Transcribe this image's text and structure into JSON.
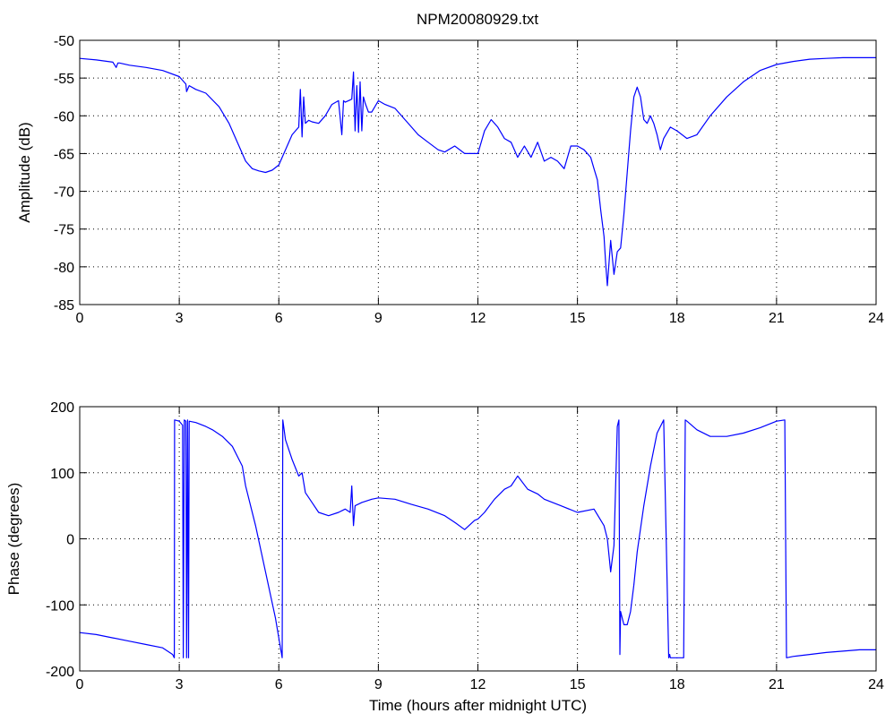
{
  "figure": {
    "title": "NPM20080929.txt",
    "colors": {
      "line": "#0000ff",
      "axes": "#000000",
      "grid": "#000000",
      "background": "#ffffff"
    }
  },
  "chart_data": [
    {
      "type": "line",
      "title": "NPM20080929.txt",
      "xlabel": "",
      "ylabel": "Amplitude (dB)",
      "xlim": [
        0,
        24
      ],
      "ylim": [
        -85,
        -50
      ],
      "xticks": [
        0,
        3,
        6,
        9,
        12,
        15,
        18,
        21,
        24
      ],
      "xtick_labels": [
        "0",
        "3",
        "6",
        "9",
        "12",
        "15",
        "18",
        "21",
        "24"
      ],
      "yticks": [
        -50,
        -55,
        -60,
        -65,
        -70,
        -75,
        -80,
        -85
      ],
      "ytick_labels": [
        "-50",
        "-55",
        "-60",
        "-65",
        "-70",
        "-75",
        "-80",
        "-85"
      ],
      "grid": true,
      "series": [
        {
          "color": "#0000ff",
          "x": [
            0,
            0.5,
            1.0,
            1.1,
            1.15,
            1.2,
            1.5,
            2.0,
            2.5,
            3.0,
            3.2,
            3.22,
            3.3,
            3.5,
            3.8,
            4.2,
            4.5,
            4.8,
            5.0,
            5.2,
            5.4,
            5.6,
            5.8,
            6.0,
            6.2,
            6.4,
            6.5,
            6.6,
            6.65,
            6.7,
            6.75,
            6.8,
            6.9,
            7.0,
            7.2,
            7.4,
            7.6,
            7.8,
            7.9,
            7.95,
            8.0,
            8.1,
            8.2,
            8.25,
            8.3,
            8.35,
            8.4,
            8.45,
            8.5,
            8.55,
            8.6,
            8.7,
            8.8,
            9.0,
            9.2,
            9.5,
            9.8,
            10.0,
            10.2,
            10.5,
            10.8,
            11.0,
            11.3,
            11.6,
            12.0,
            12.2,
            12.4,
            12.6,
            12.8,
            13.0,
            13.2,
            13.4,
            13.6,
            13.8,
            14.0,
            14.2,
            14.4,
            14.6,
            14.8,
            15.0,
            15.2,
            15.4,
            15.5,
            15.6,
            15.7,
            15.8,
            15.85,
            15.9,
            16.0,
            16.1,
            16.2,
            16.3,
            16.4,
            16.5,
            16.6,
            16.7,
            16.8,
            16.9,
            17.0,
            17.1,
            17.2,
            17.3,
            17.4,
            17.5,
            17.6,
            17.8,
            18.0,
            18.3,
            18.6,
            19.0,
            19.5,
            20.0,
            20.5,
            21.0,
            21.5,
            22.0,
            22.5,
            23.0,
            23.5,
            24.0
          ],
          "y": [
            -52.4,
            -52.6,
            -52.9,
            -53.6,
            -53.0,
            -53.0,
            -53.3,
            -53.6,
            -54.0,
            -54.8,
            -55.8,
            -56.8,
            -56.0,
            -56.5,
            -57.0,
            -58.8,
            -61.0,
            -64.0,
            -66.0,
            -67.0,
            -67.3,
            -67.5,
            -67.2,
            -66.5,
            -64.5,
            -62.5,
            -62.0,
            -61.5,
            -56.5,
            -62.8,
            -57.5,
            -61.0,
            -60.6,
            -60.8,
            -61.0,
            -60.0,
            -58.5,
            -58.0,
            -62.5,
            -58.0,
            -58.2,
            -58.0,
            -57.8,
            -54.2,
            -62.0,
            -56.0,
            -62.2,
            -55.5,
            -62.0,
            -57.5,
            -58.3,
            -59.5,
            -59.5,
            -58.0,
            -58.5,
            -59.0,
            -60.5,
            -61.5,
            -62.5,
            -63.5,
            -64.5,
            -64.8,
            -64.0,
            -65.0,
            -65.0,
            -62.0,
            -60.5,
            -61.5,
            -63.0,
            -63.5,
            -65.5,
            -64.0,
            -65.5,
            -63.5,
            -66.0,
            -65.5,
            -66.0,
            -67.0,
            -64.0,
            -64.0,
            -64.5,
            -65.5,
            -67.0,
            -68.5,
            -72.5,
            -76.0,
            -79.5,
            -82.5,
            -76.5,
            -81.0,
            -78.0,
            -77.5,
            -73.0,
            -67.5,
            -62.0,
            -57.5,
            -56.2,
            -57.5,
            -60.5,
            -61.0,
            -60.0,
            -61.0,
            -62.5,
            -64.5,
            -63.0,
            -61.5,
            -62.0,
            -63.0,
            -62.5,
            -60.0,
            -57.5,
            -55.5,
            -54.0,
            -53.2,
            -52.8,
            -52.5,
            -52.4,
            -52.3,
            -52.3,
            -52.3
          ]
        }
      ]
    },
    {
      "type": "line",
      "title": "",
      "xlabel": "Time (hours after midnight UTC)",
      "ylabel": "Phase (degrees)",
      "xlim": [
        0,
        24
      ],
      "ylim": [
        -200,
        200
      ],
      "xticks": [
        0,
        3,
        6,
        9,
        12,
        15,
        18,
        21,
        24
      ],
      "xtick_labels": [
        "0",
        "3",
        "6",
        "9",
        "12",
        "15",
        "18",
        "21",
        "24"
      ],
      "yticks": [
        200,
        100,
        0,
        -100,
        -200
      ],
      "ytick_labels": [
        "200",
        "100",
        "0",
        "-100",
        "-200"
      ],
      "grid": true,
      "series": [
        {
          "color": "#0000ff",
          "x": [
            0,
            0.5,
            1.0,
            1.5,
            2.0,
            2.5,
            2.8,
            2.85,
            2.86,
            3.0,
            3.1,
            3.12,
            3.15,
            3.2,
            3.22,
            3.25,
            3.28,
            3.3,
            3.5,
            3.8,
            4.0,
            4.3,
            4.6,
            4.9,
            5.0,
            5.3,
            5.6,
            5.9,
            6.1,
            6.12,
            6.2,
            6.4,
            6.6,
            6.7,
            6.8,
            7.0,
            7.2,
            7.5,
            7.8,
            8.0,
            8.15,
            8.2,
            8.25,
            8.3,
            8.5,
            8.8,
            9.0,
            9.5,
            10.0,
            10.5,
            11.0,
            11.3,
            11.6,
            11.9,
            12.0,
            12.2,
            12.5,
            12.8,
            13.0,
            13.2,
            13.5,
            13.8,
            14.0,
            14.5,
            15.0,
            15.5,
            15.8,
            15.9,
            16.0,
            16.1,
            16.2,
            16.25,
            16.28,
            16.3,
            16.35,
            16.4,
            16.5,
            16.6,
            16.7,
            16.8,
            17.0,
            17.2,
            17.4,
            17.6,
            17.75,
            17.78,
            17.8,
            18.0,
            18.2,
            18.25,
            18.3,
            18.6,
            19.0,
            19.5,
            20.0,
            20.5,
            21.0,
            21.25,
            21.3,
            21.5,
            22.0,
            22.5,
            23.0,
            23.5,
            24.0
          ],
          "y": [
            -142,
            -145,
            -150,
            -155,
            -160,
            -165,
            -175,
            -180,
            180,
            178,
            172,
            -180,
            180,
            178,
            -180,
            180,
            -180,
            178,
            176,
            170,
            165,
            155,
            140,
            110,
            80,
            20,
            -50,
            -120,
            -180,
            180,
            150,
            120,
            95,
            100,
            70,
            55,
            40,
            35,
            40,
            45,
            40,
            80,
            20,
            50,
            55,
            60,
            62,
            60,
            52,
            45,
            35,
            25,
            14,
            28,
            30,
            40,
            60,
            75,
            80,
            95,
            75,
            68,
            60,
            50,
            40,
            45,
            20,
            0,
            -50,
            -10,
            170,
            180,
            -175,
            -110,
            -120,
            -130,
            -130,
            -110,
            -70,
            -20,
            50,
            110,
            160,
            180,
            -180,
            -175,
            -180,
            -180,
            -180,
            180,
            178,
            165,
            155,
            155,
            160,
            168,
            178,
            180,
            -180,
            -178,
            -175,
            -172,
            -170,
            -168,
            -168
          ]
        }
      ]
    }
  ]
}
